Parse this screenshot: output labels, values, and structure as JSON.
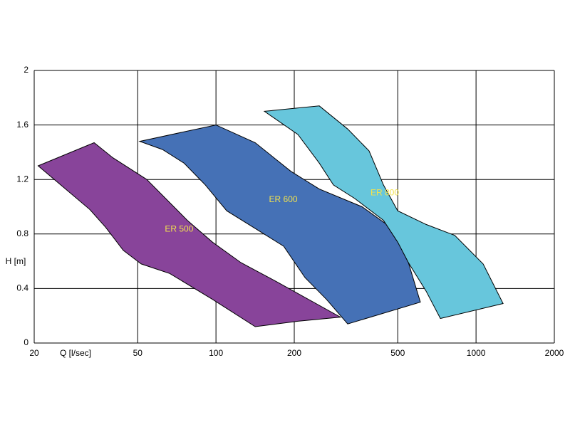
{
  "chart_data": {
    "type": "area",
    "x_label": "Q  [l/sec]",
    "y_label": "H  [m]",
    "xscale": "log",
    "grid": true,
    "xlim": [
      20,
      2000
    ],
    "xticks": [
      20,
      50,
      100,
      200,
      500,
      1000,
      2000
    ],
    "ylim": [
      0,
      2
    ],
    "yticks": [
      0,
      0.4,
      0.8,
      1.2,
      1.6,
      2
    ],
    "label_color": "#f2e24e",
    "series": [
      {
        "name": "ER 500",
        "color": "#88449a",
        "x": [
          20.7,
          34.0,
          40.1,
          54.2,
          77.6,
          97,
          124.7,
          171,
          301,
          206.5,
          141.5,
          97,
          66.4,
          51.6,
          44.0,
          37.6,
          32.7
        ],
        "values": [
          1.3,
          1.47,
          1.36,
          1.2,
          0.9,
          0.74,
          0.59,
          0.45,
          0.19,
          0.16,
          0.12,
          0.32,
          0.51,
          0.58,
          0.68,
          0.85,
          0.98
        ]
      },
      {
        "name": "ER 600",
        "color": "#4571b6",
        "x": [
          50.9,
          100,
          141.5,
          194,
          249.5,
          364.5,
          469,
          549.5,
          611,
          321,
          266,
          220,
          182,
          141.5,
          110,
          91,
          75.3,
          62.3
        ],
        "values": [
          1.48,
          1.6,
          1.47,
          1.26,
          1.13,
          1.0,
          0.85,
          0.59,
          0.3,
          0.14,
          0.32,
          0.48,
          0.71,
          0.84,
          0.97,
          1.16,
          1.32,
          1.42
        ]
      },
      {
        "name": "ER 800",
        "color": "#67c6dc",
        "x": [
          153.5,
          249.5,
          321,
          388,
          440.5,
          500,
          643,
          828,
          1065,
          1271,
          729.5,
          643,
          549.5,
          500,
          440.5,
          342,
          283,
          249.5,
          206.5
        ],
        "values": [
          1.7,
          1.74,
          1.57,
          1.41,
          1.16,
          0.97,
          0.87,
          0.79,
          0.58,
          0.29,
          0.18,
          0.38,
          0.59,
          0.74,
          0.9,
          1.06,
          1.16,
          1.32,
          1.53
        ]
      }
    ]
  }
}
